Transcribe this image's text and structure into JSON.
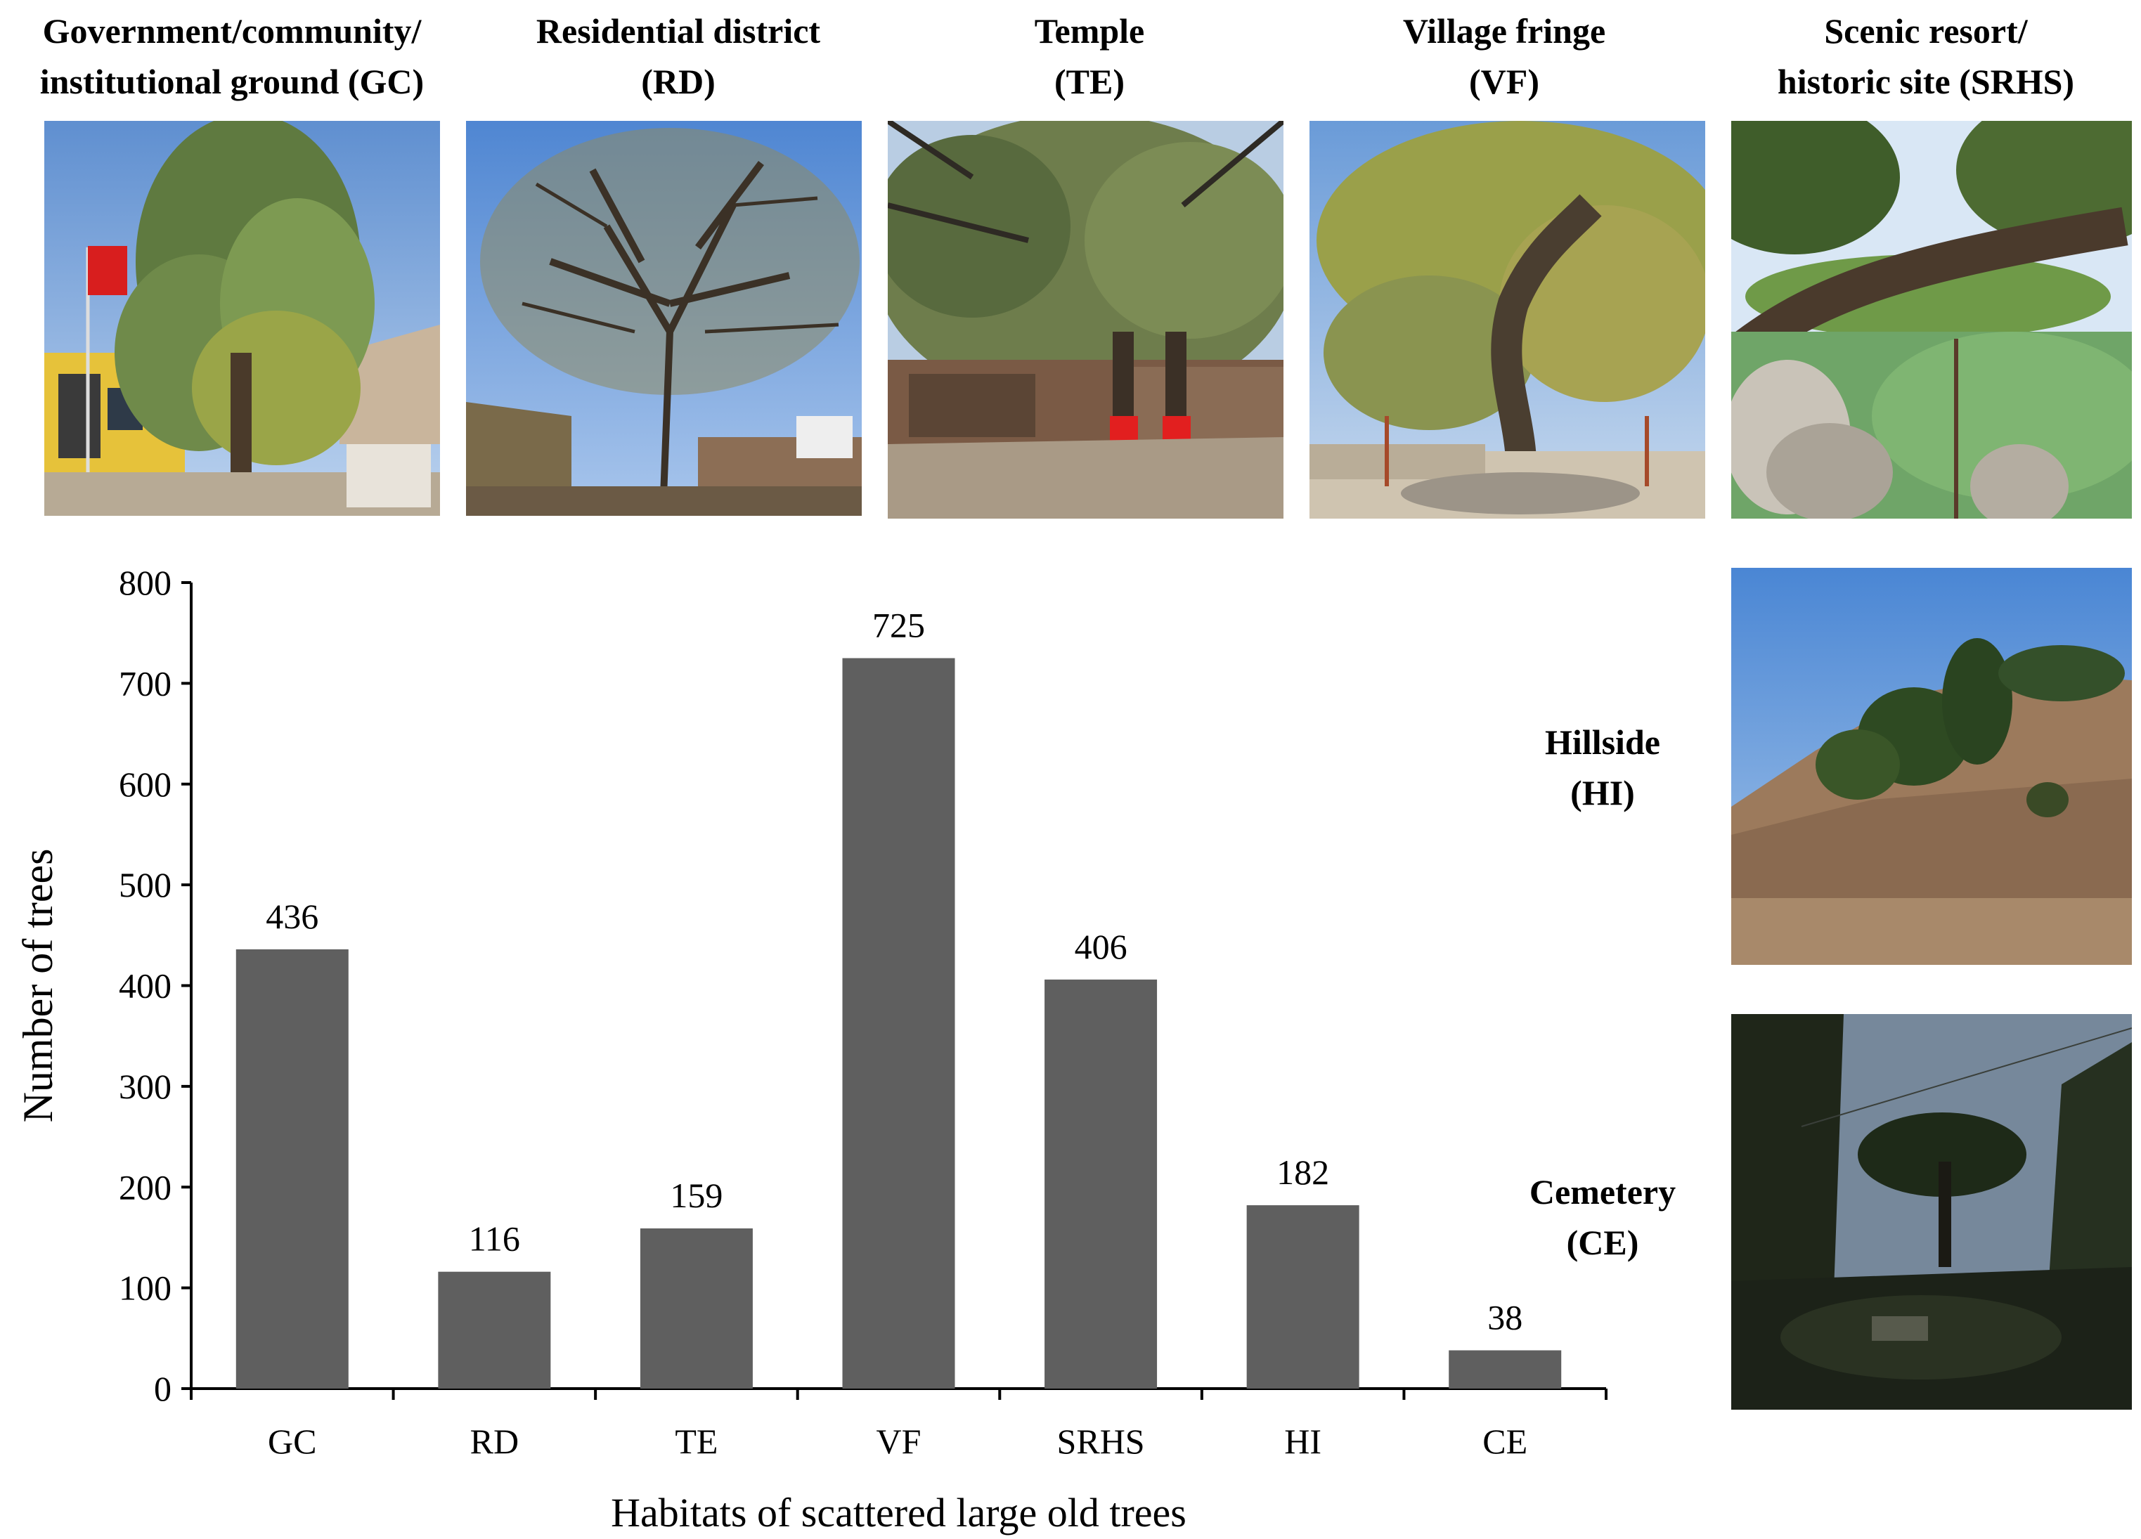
{
  "habitats": [
    {
      "key": "GC",
      "caption_lines": [
        "Government/community/",
        "institutional ground (GC)"
      ]
    },
    {
      "key": "RD",
      "caption_lines": [
        "Residential district",
        "(RD)"
      ]
    },
    {
      "key": "TE",
      "caption_lines": [
        "Temple",
        "(TE)"
      ]
    },
    {
      "key": "VF",
      "caption_lines": [
        "Village fringe",
        "(VF)"
      ]
    },
    {
      "key": "SRHS",
      "caption_lines": [
        "Scenic resort/",
        "historic site (SRHS)"
      ]
    },
    {
      "key": "HI",
      "caption_lines": [
        "Hillside",
        "(HI)"
      ]
    },
    {
      "key": "CE",
      "caption_lines": [
        "Cemetery",
        "(CE)"
      ]
    }
  ],
  "chart_data": {
    "type": "bar",
    "categories": [
      "GC",
      "RD",
      "TE",
      "VF",
      "SRHS",
      "HI",
      "CE"
    ],
    "values": [
      436,
      116,
      159,
      725,
      406,
      182,
      38
    ],
    "data_labels": [
      "436",
      "116",
      "159",
      "725",
      "406",
      "182",
      "38"
    ],
    "xlabel": "Habitats of scattered large old trees",
    "ylabel": "Number of trees",
    "ylim": [
      0,
      800
    ],
    "yticks": [
      0,
      100,
      200,
      300,
      400,
      500,
      600,
      700,
      800
    ],
    "grid": false,
    "legend": "none",
    "bar_color": "#5f5f5f"
  },
  "colors": {
    "sky": "#8fb4e0",
    "foliage": "#6f8a4a",
    "trunk": "#4a3a2a",
    "ground": "#a89a84",
    "flag_red": "#d81e1e",
    "wall_yellow": "#e6c23a"
  }
}
